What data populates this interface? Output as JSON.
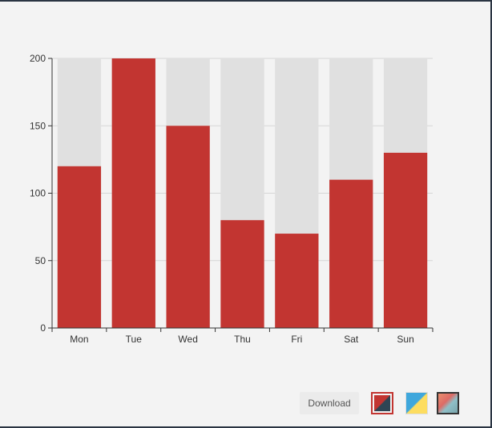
{
  "chart_data": {
    "type": "bar",
    "categories": [
      "Mon",
      "Tue",
      "Wed",
      "Thu",
      "Fri",
      "Sat",
      "Sun"
    ],
    "values": [
      120,
      200,
      150,
      80,
      70,
      110,
      130
    ],
    "background_max": 200,
    "ylim": [
      0,
      200
    ],
    "yticks": [
      0,
      50,
      100,
      150,
      200
    ],
    "grid": true,
    "bar_color": "#c23531",
    "background_bar_color": "#e0e0e0",
    "title": "",
    "xlabel": "",
    "ylabel": ""
  },
  "toolbar": {
    "download_label": "Download",
    "themes": [
      "theme-red-dark",
      "theme-blue-yellow",
      "theme-salmon-teal"
    ]
  },
  "colors": {
    "page_background": "#f3f3f3",
    "accent": "#c23531"
  }
}
